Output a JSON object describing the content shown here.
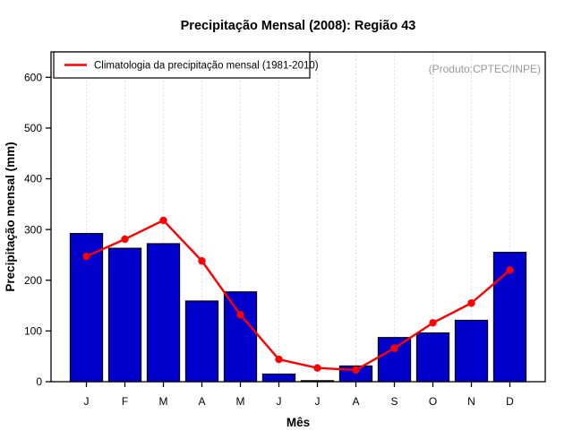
{
  "title": "Precipitação Mensal (2008): Região 43",
  "watermark": "(Produto:CPTEC/INPE)",
  "legend": {
    "label": "Climatologia da precipitação mensal (1981-2010)",
    "line_color": "#ff0000"
  },
  "colors": {
    "bar_fill": "#0000cd",
    "bar_border": "#000000",
    "line": "#ff0000",
    "grid": "#d4d4d4",
    "frame": "#000000",
    "watermark_text": "#999999"
  },
  "chart_data": {
    "type": "bar",
    "title": "Precipitação Mensal (2008): Região 43",
    "categories": [
      "J",
      "F",
      "M",
      "A",
      "M",
      "J",
      "J",
      "A",
      "S",
      "O",
      "N",
      "D"
    ],
    "series": [
      {
        "name": "Precipitação mensal 2008",
        "type": "bar",
        "color": "#0000cd",
        "values": [
          292,
          263,
          272,
          159,
          177,
          15,
          2,
          31,
          87,
          96,
          121,
          255
        ]
      },
      {
        "name": "Climatologia da precipitação mensal (1981-2010)",
        "type": "line",
        "color": "#ff0000",
        "values": [
          247,
          281,
          318,
          238,
          132,
          44,
          27,
          23,
          66,
          116,
          155,
          220
        ]
      }
    ],
    "xlabel": "Mês",
    "ylabel": "Precipitação mensal (mm)",
    "ylim": [
      0,
      650
    ],
    "yticks": [
      0,
      100,
      200,
      300,
      400,
      500,
      600
    ],
    "grid": "vertical-dotted",
    "legend_position": "top-left"
  }
}
